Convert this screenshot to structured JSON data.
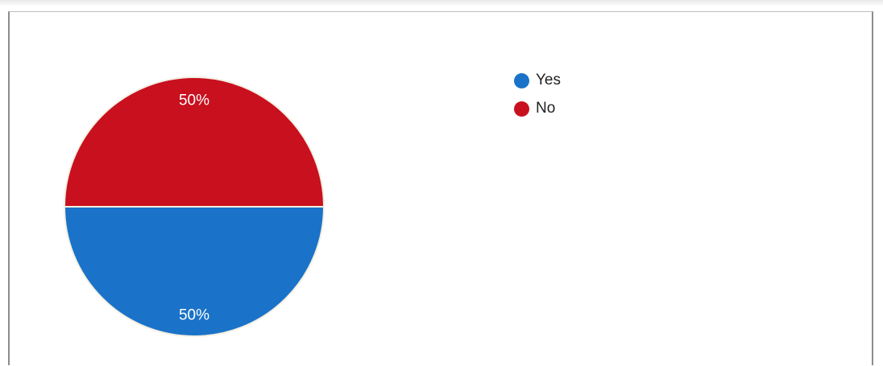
{
  "chart_data": {
    "type": "pie",
    "title": "",
    "slices": [
      {
        "label": "Yes",
        "value": 50,
        "display": "50%",
        "color": "#1a73c8"
      },
      {
        "label": "No",
        "value": 50,
        "display": "50%",
        "color": "#c8101e"
      }
    ],
    "legend_position": "top-right"
  }
}
